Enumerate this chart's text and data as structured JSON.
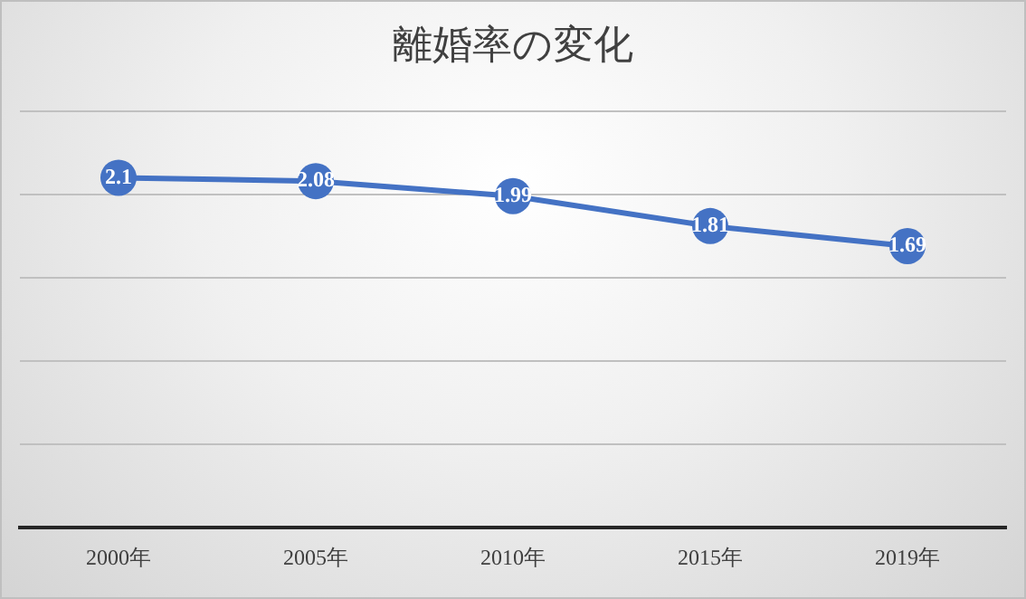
{
  "chart_data": {
    "type": "line",
    "title": "離婚率の変化",
    "categories": [
      "2000年",
      "2005年",
      "2010年",
      "2015年",
      "2019年"
    ],
    "series": [
      {
        "color": "#4472c4",
        "values": [
          2.1,
          2.08,
          1.99,
          1.81,
          1.69
        ]
      }
    ],
    "ylim": [
      0,
      2.5
    ],
    "yticks": [
      0,
      0.5,
      1,
      1.5,
      2,
      2.5
    ],
    "tick_labels": "x",
    "grid": "y",
    "legend": false,
    "marker": "circle",
    "line_style": "solid",
    "data_labels": true
  }
}
